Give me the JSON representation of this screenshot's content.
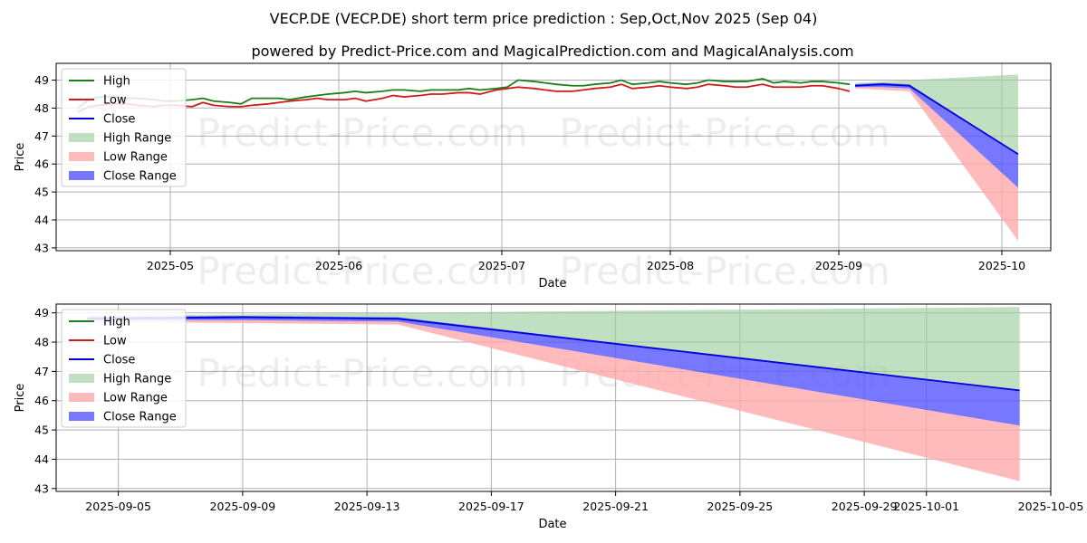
{
  "title": "VECP.DE (VECP.DE) short term price prediction : Sep,Oct,Nov 2025 (Sep 04)",
  "subtitle": "powered by Predict-Price.com and MagicalPrediction.com and MagicalAnalysis.com",
  "watermark": "Predict-Price.com",
  "colors": {
    "high": "#1a7f1a",
    "low": "#d11a1a",
    "close": "#0000dd",
    "high_range": "#9fd09f",
    "low_range": "#ffaaaa",
    "close_range": "#5555ff"
  },
  "chart_data": [
    {
      "type": "line",
      "xlabel": "Date",
      "ylabel": "Price",
      "xlim": [
        "2025-04-10",
        "2025-10-10"
      ],
      "ylim": [
        42.9,
        49.6
      ],
      "x_ticks": [
        "2025-05",
        "2025-06",
        "2025-07",
        "2025-08",
        "2025-09",
        "2025-10"
      ],
      "x_tick_dates": [
        "2025-05-01",
        "2025-06-01",
        "2025-07-01",
        "2025-08-01",
        "2025-09-01",
        "2025-10-01"
      ],
      "y_ticks": [
        43,
        44,
        45,
        46,
        47,
        48,
        49
      ],
      "grid": true,
      "legend": "top-left",
      "legend_entries": [
        "High",
        "Low",
        "Close",
        "High Range",
        "Low Range",
        "Close Range"
      ],
      "history": {
        "dates": [
          "2025-04-14",
          "2025-04-16",
          "2025-04-18",
          "2025-04-21",
          "2025-04-23",
          "2025-04-25",
          "2025-04-28",
          "2025-04-30",
          "2025-05-02",
          "2025-05-05",
          "2025-05-07",
          "2025-05-09",
          "2025-05-12",
          "2025-05-14",
          "2025-05-16",
          "2025-05-19",
          "2025-05-21",
          "2025-05-23",
          "2025-05-26",
          "2025-05-28",
          "2025-05-30",
          "2025-06-02",
          "2025-06-04",
          "2025-06-06",
          "2025-06-09",
          "2025-06-11",
          "2025-06-13",
          "2025-06-16",
          "2025-06-18",
          "2025-06-20",
          "2025-06-23",
          "2025-06-25",
          "2025-06-27",
          "2025-06-30",
          "2025-07-02",
          "2025-07-04",
          "2025-07-07",
          "2025-07-09",
          "2025-07-11",
          "2025-07-14",
          "2025-07-16",
          "2025-07-18",
          "2025-07-21",
          "2025-07-23",
          "2025-07-25",
          "2025-07-28",
          "2025-07-30",
          "2025-08-01",
          "2025-08-04",
          "2025-08-06",
          "2025-08-08",
          "2025-08-11",
          "2025-08-13",
          "2025-08-15",
          "2025-08-18",
          "2025-08-20",
          "2025-08-22",
          "2025-08-25",
          "2025-08-27",
          "2025-08-29",
          "2025-09-01",
          "2025-09-03"
        ],
        "high": [
          48.0,
          48.3,
          48.4,
          48.4,
          48.35,
          48.35,
          48.3,
          48.25,
          48.25,
          48.3,
          48.35,
          48.25,
          48.2,
          48.15,
          48.35,
          48.35,
          48.35,
          48.3,
          48.4,
          48.45,
          48.5,
          48.55,
          48.6,
          48.55,
          48.6,
          48.65,
          48.65,
          48.6,
          48.65,
          48.65,
          48.65,
          48.7,
          48.65,
          48.7,
          48.75,
          49.0,
          48.95,
          48.9,
          48.85,
          48.8,
          48.8,
          48.85,
          48.9,
          49.0,
          48.85,
          48.9,
          48.95,
          48.9,
          48.85,
          48.9,
          49.0,
          48.95,
          48.95,
          48.95,
          49.05,
          48.9,
          48.95,
          48.9,
          48.95,
          48.95,
          48.9,
          48.85
        ],
        "low": [
          47.85,
          48.05,
          48.1,
          48.15,
          48.15,
          48.1,
          48.05,
          48.1,
          48.1,
          48.05,
          48.2,
          48.1,
          48.05,
          48.05,
          48.1,
          48.15,
          48.2,
          48.25,
          48.3,
          48.35,
          48.3,
          48.3,
          48.35,
          48.25,
          48.35,
          48.45,
          48.4,
          48.45,
          48.5,
          48.5,
          48.55,
          48.55,
          48.5,
          48.65,
          48.7,
          48.75,
          48.7,
          48.65,
          48.6,
          48.6,
          48.65,
          48.7,
          48.75,
          48.85,
          48.7,
          48.75,
          48.8,
          48.75,
          48.7,
          48.75,
          48.85,
          48.8,
          48.75,
          48.75,
          48.85,
          48.75,
          48.75,
          48.75,
          48.8,
          48.8,
          48.7,
          48.6
        ]
      },
      "forecast": {
        "dates": [
          "2025-09-04",
          "2025-09-09",
          "2025-09-14",
          "2025-10-04"
        ],
        "close": [
          48.8,
          48.85,
          48.8,
          46.35
        ],
        "high_range_top": [
          48.9,
          48.95,
          49.0,
          49.2
        ],
        "high_range_bottom": [
          48.8,
          48.85,
          48.8,
          46.35
        ],
        "close_range_top": [
          48.85,
          48.9,
          48.85,
          46.35
        ],
        "close_range_bottom": [
          48.75,
          48.75,
          48.7,
          45.15
        ],
        "low_range_top": [
          48.75,
          48.75,
          48.7,
          45.15
        ],
        "low_range_bottom": [
          48.7,
          48.65,
          48.6,
          43.25
        ]
      }
    },
    {
      "type": "line",
      "xlabel": "Date",
      "ylabel": "Price",
      "xlim": [
        "2025-09-03",
        "2025-10-05"
      ],
      "ylim": [
        42.9,
        49.3
      ],
      "x_ticks": [
        "2025-09-05",
        "2025-09-09",
        "2025-09-13",
        "2025-09-17",
        "2025-09-21",
        "2025-09-25",
        "2025-09-29",
        "2025-10-01",
        "2025-10-05"
      ],
      "x_tick_dates": [
        "2025-09-05",
        "2025-09-09",
        "2025-09-13",
        "2025-09-17",
        "2025-09-21",
        "2025-09-25",
        "2025-09-29",
        "2025-10-01",
        "2025-10-05"
      ],
      "y_ticks": [
        43,
        44,
        45,
        46,
        47,
        48,
        49
      ],
      "grid": true,
      "legend": "top-left",
      "legend_entries": [
        "High",
        "Low",
        "Close",
        "High Range",
        "Low Range",
        "Close Range"
      ],
      "forecast": {
        "dates": [
          "2025-09-04",
          "2025-09-09",
          "2025-09-14",
          "2025-10-04"
        ],
        "close": [
          48.8,
          48.85,
          48.8,
          46.35
        ],
        "high_range_top": [
          48.9,
          48.95,
          49.0,
          49.2
        ],
        "high_range_bottom": [
          48.8,
          48.85,
          48.8,
          46.35
        ],
        "close_range_top": [
          48.85,
          48.9,
          48.85,
          46.35
        ],
        "close_range_bottom": [
          48.75,
          48.75,
          48.7,
          45.15
        ],
        "low_range_top": [
          48.75,
          48.75,
          48.7,
          45.15
        ],
        "low_range_bottom": [
          48.7,
          48.65,
          48.6,
          43.25
        ]
      }
    }
  ]
}
